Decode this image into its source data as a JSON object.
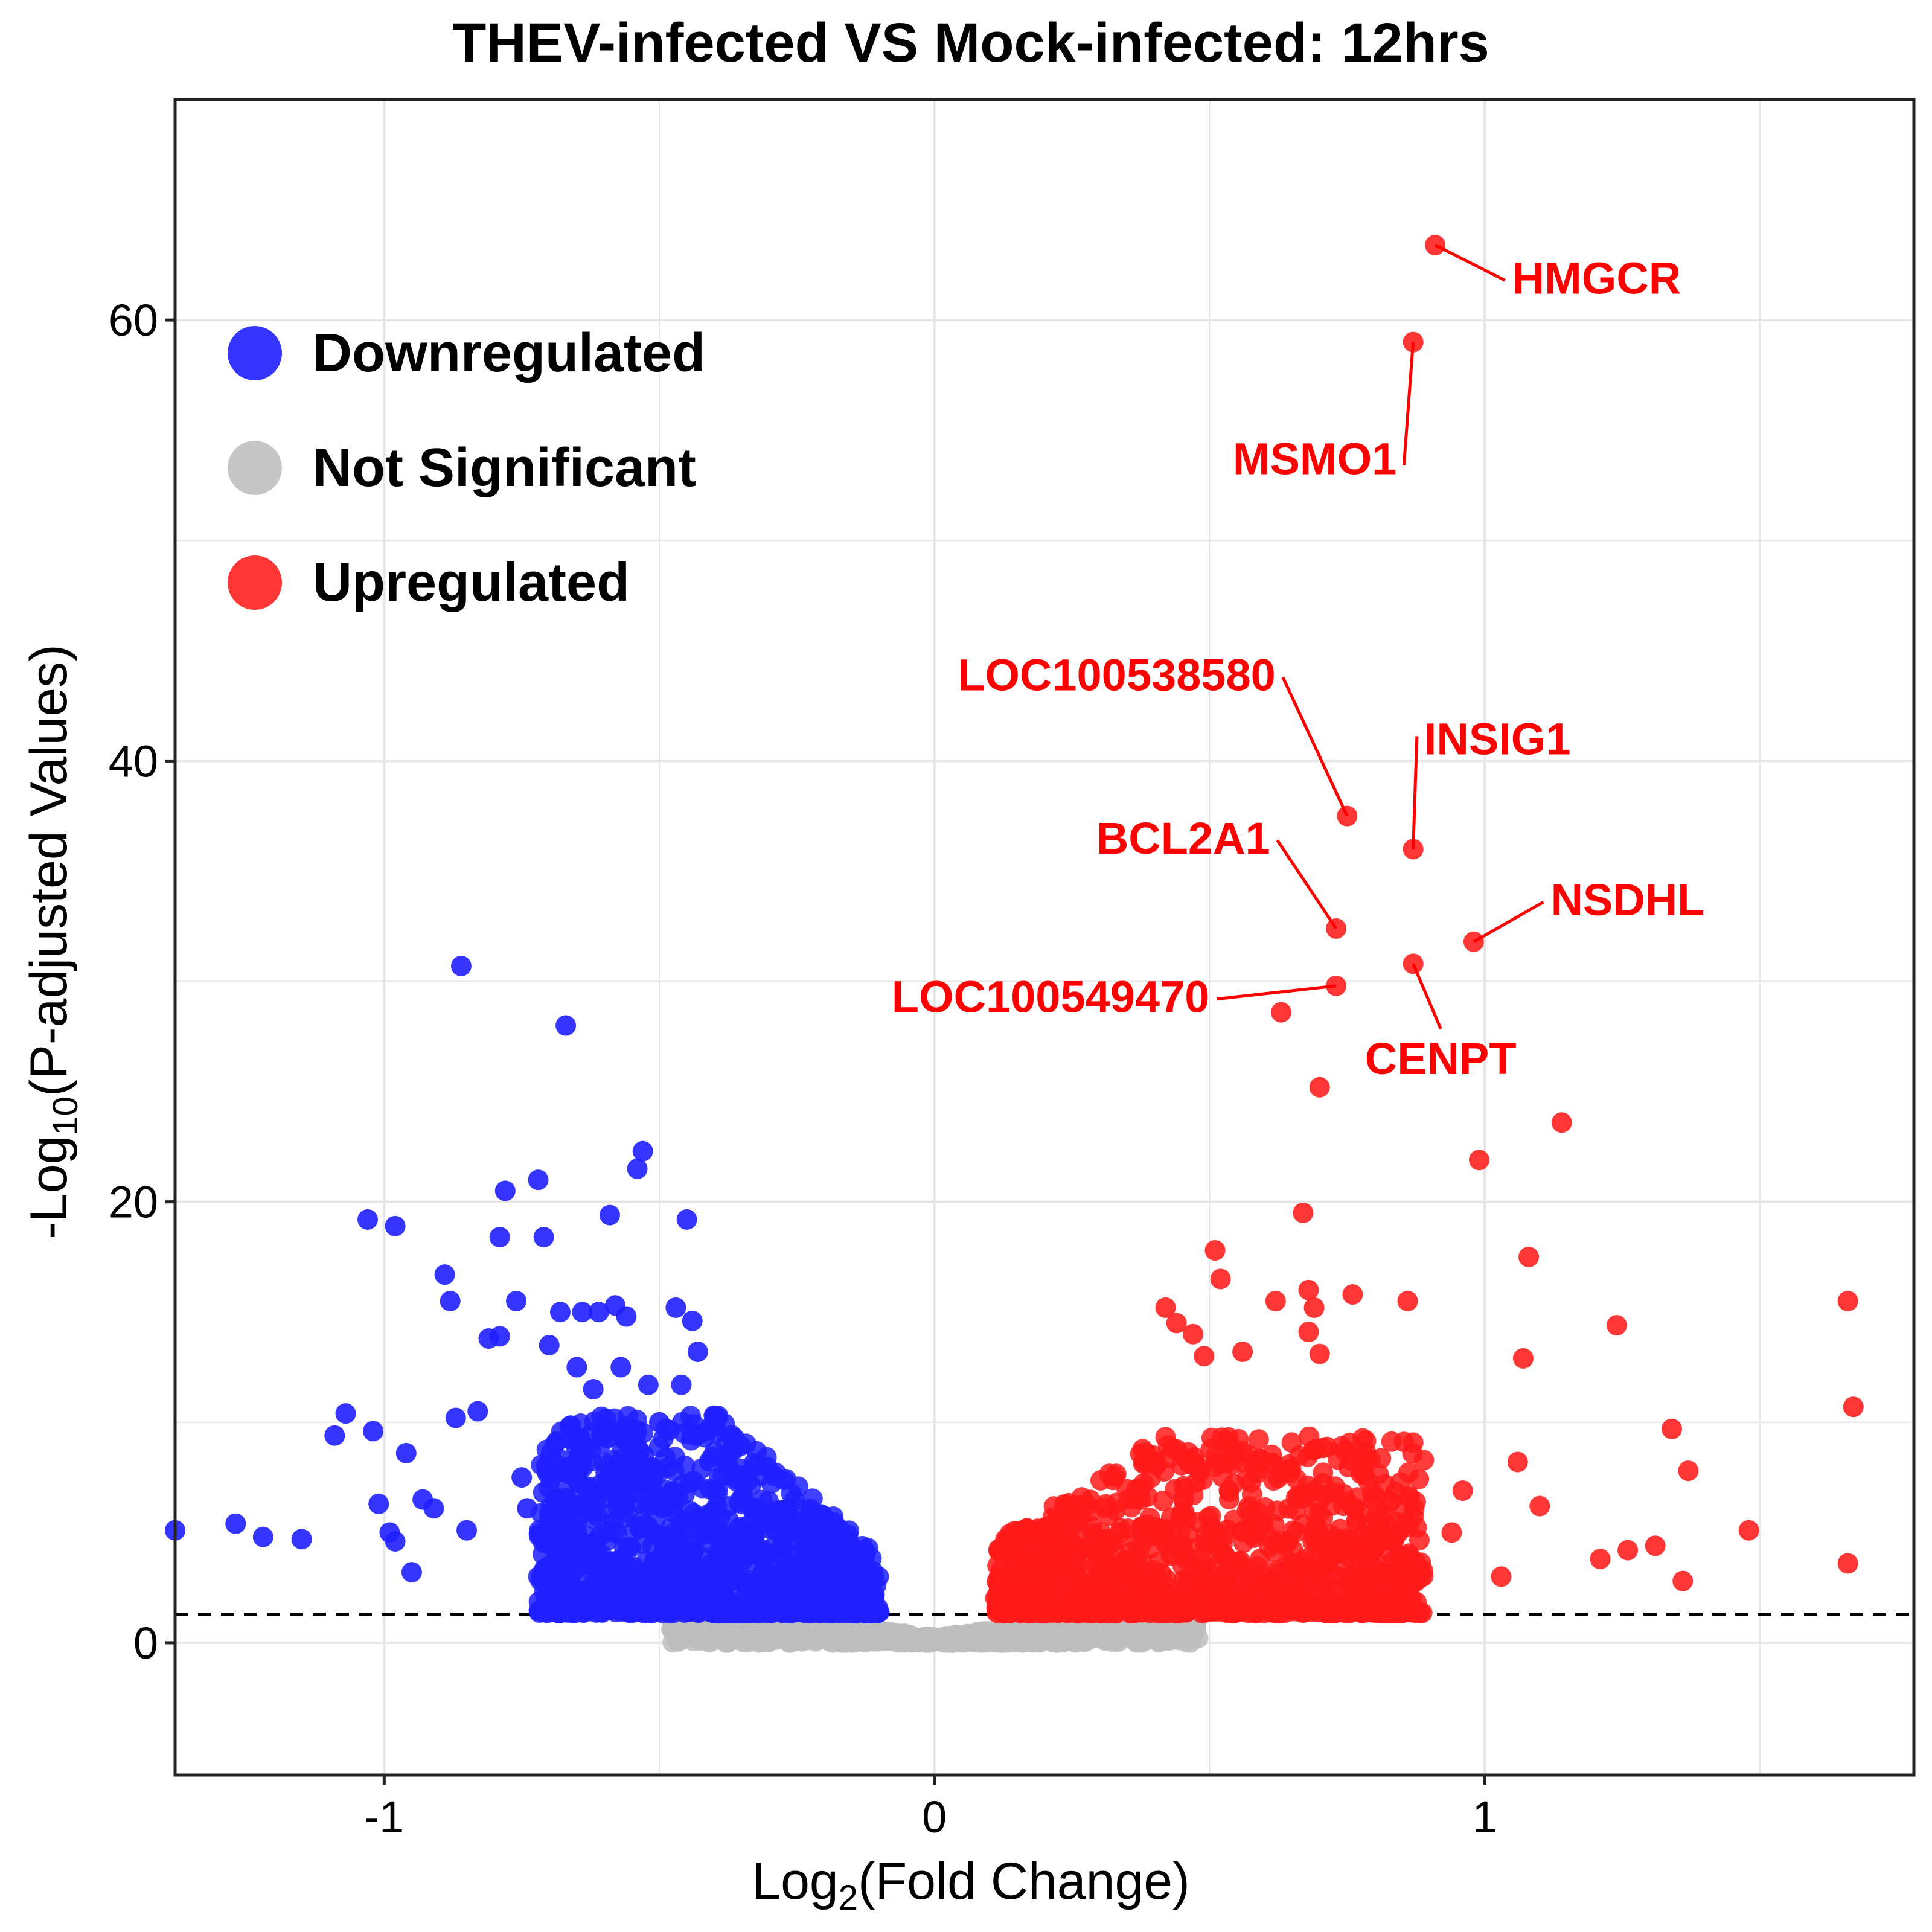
{
  "chart_data": {
    "type": "scatter",
    "title": "THEV-infected VS Mock-infected: 12hrs",
    "xlabel_prefix": "Log",
    "xlabel_sub": "2",
    "xlabel_suffix": "(Fold Change)",
    "ylabel_prefix": "-Log",
    "ylabel_sub": "10",
    "ylabel_suffix": "(P-adjusted Values)",
    "xlim": [
      -1.38,
      1.78
    ],
    "ylim": [
      -6,
      70
    ],
    "x_ticks": [
      {
        "value": -1,
        "label": "-1"
      },
      {
        "value": 0,
        "label": "0"
      },
      {
        "value": 1,
        "label": "1"
      }
    ],
    "y_ticks": [
      {
        "value": 0,
        "label": "0"
      },
      {
        "value": 20,
        "label": "20"
      },
      {
        "value": 40,
        "label": "40"
      },
      {
        "value": 60,
        "label": "60"
      }
    ],
    "grid": true,
    "threshold_line_y": 1.3,
    "legend_position": "top-left",
    "legend": [
      {
        "label": "Downregulated",
        "color": "#1f1fff"
      },
      {
        "label": "Not Significant",
        "color": "#c0c0c0"
      },
      {
        "label": "Upregulated",
        "color": "#ff2020"
      }
    ],
    "series": [
      {
        "name": "Downregulated",
        "color": "#1f1fff",
        "points": [
          [
            -1.38,
            5.1
          ],
          [
            -1.27,
            5.4
          ],
          [
            -1.22,
            4.8
          ],
          [
            -1.15,
            4.7
          ],
          [
            -1.09,
            9.4
          ],
          [
            -1.07,
            10.4
          ],
          [
            -1.03,
            19.2
          ],
          [
            -1.02,
            9.6
          ],
          [
            -1.01,
            6.3
          ],
          [
            -0.99,
            5.0
          ],
          [
            -0.98,
            4.6
          ],
          [
            -0.98,
            18.9
          ],
          [
            -0.96,
            8.6
          ],
          [
            -0.95,
            3.2
          ],
          [
            -0.93,
            6.5
          ],
          [
            -0.91,
            6.1
          ],
          [
            -0.89,
            16.7
          ],
          [
            -0.88,
            15.5
          ],
          [
            -0.87,
            10.2
          ],
          [
            -0.86,
            30.7
          ],
          [
            -0.85,
            5.1
          ],
          [
            -0.83,
            10.5
          ],
          [
            -0.81,
            13.8
          ],
          [
            -0.79,
            13.9
          ],
          [
            -0.79,
            18.4
          ],
          [
            -0.78,
            20.5
          ],
          [
            -0.76,
            15.5
          ],
          [
            -0.75,
            7.5
          ],
          [
            -0.74,
            6.1
          ],
          [
            -0.72,
            21.0
          ],
          [
            -0.71,
            18.4
          ],
          [
            -0.7,
            13.5
          ],
          [
            -0.69,
            9.0
          ],
          [
            -0.68,
            15.0
          ],
          [
            -0.67,
            28.0
          ],
          [
            -0.65,
            12.5
          ],
          [
            -0.64,
            15.0
          ],
          [
            -0.62,
            11.5
          ],
          [
            -0.61,
            15.0
          ],
          [
            -0.59,
            19.4
          ],
          [
            -0.58,
            15.3
          ],
          [
            -0.57,
            12.5
          ],
          [
            -0.56,
            14.8
          ],
          [
            -0.54,
            21.5
          ],
          [
            -0.53,
            22.3
          ],
          [
            -0.52,
            11.7
          ],
          [
            -0.5,
            10.0
          ],
          [
            -0.47,
            15.2
          ],
          [
            -0.46,
            11.7
          ],
          [
            -0.45,
            19.2
          ],
          [
            -0.44,
            14.6
          ],
          [
            -0.43,
            13.2
          ]
        ]
      },
      {
        "name": "Upregulated",
        "color": "#ff2020",
        "points": [
          [
            0.91,
            63.4
          ],
          [
            0.87,
            59.0
          ],
          [
            0.75,
            37.5
          ],
          [
            0.87,
            36.0
          ],
          [
            0.73,
            32.4
          ],
          [
            0.73,
            29.8
          ],
          [
            0.87,
            30.8
          ],
          [
            0.98,
            31.8
          ],
          [
            0.63,
            28.6
          ],
          [
            0.7,
            25.2
          ],
          [
            1.14,
            23.6
          ],
          [
            0.99,
            21.9
          ],
          [
            0.67,
            19.5
          ],
          [
            1.08,
            17.5
          ],
          [
            0.51,
            17.8
          ],
          [
            0.52,
            16.5
          ],
          [
            0.68,
            16.0
          ],
          [
            0.76,
            15.8
          ],
          [
            0.69,
            15.2
          ],
          [
            0.62,
            15.5
          ],
          [
            0.86,
            15.5
          ],
          [
            1.66,
            15.5
          ],
          [
            1.24,
            14.4
          ],
          [
            0.68,
            14.1
          ],
          [
            0.7,
            13.1
          ],
          [
            1.07,
            12.9
          ],
          [
            0.42,
            15.2
          ],
          [
            0.44,
            14.5
          ],
          [
            0.47,
            14.0
          ],
          [
            0.49,
            13.0
          ],
          [
            0.56,
            13.2
          ],
          [
            1.34,
            9.7
          ],
          [
            1.37,
            7.8
          ],
          [
            1.48,
            5.1
          ],
          [
            1.66,
            3.6
          ],
          [
            1.67,
            10.7
          ],
          [
            1.31,
            4.4
          ],
          [
            1.26,
            4.2
          ],
          [
            1.21,
            3.8
          ],
          [
            1.36,
            2.8
          ],
          [
            1.1,
            6.2
          ],
          [
            1.06,
            8.2
          ],
          [
            1.03,
            3.0
          ],
          [
            0.96,
            6.9
          ],
          [
            0.94,
            5.0
          ]
        ]
      }
    ],
    "annotations": [
      {
        "label": "HMGCR",
        "x": 0.91,
        "y": 63.4
      },
      {
        "label": "MSMO1",
        "x": 0.87,
        "y": 59.0
      },
      {
        "label": "LOC100538580",
        "x": 0.75,
        "y": 37.5
      },
      {
        "label": "INSIG1",
        "x": 0.87,
        "y": 36.0
      },
      {
        "label": "BCL2A1",
        "x": 0.73,
        "y": 32.4
      },
      {
        "label": "NSDHL",
        "x": 0.98,
        "y": 31.8
      },
      {
        "label": "LOC100549470",
        "x": 0.73,
        "y": 29.8
      },
      {
        "label": "CENPT",
        "x": 0.87,
        "y": 30.8
      }
    ]
  }
}
